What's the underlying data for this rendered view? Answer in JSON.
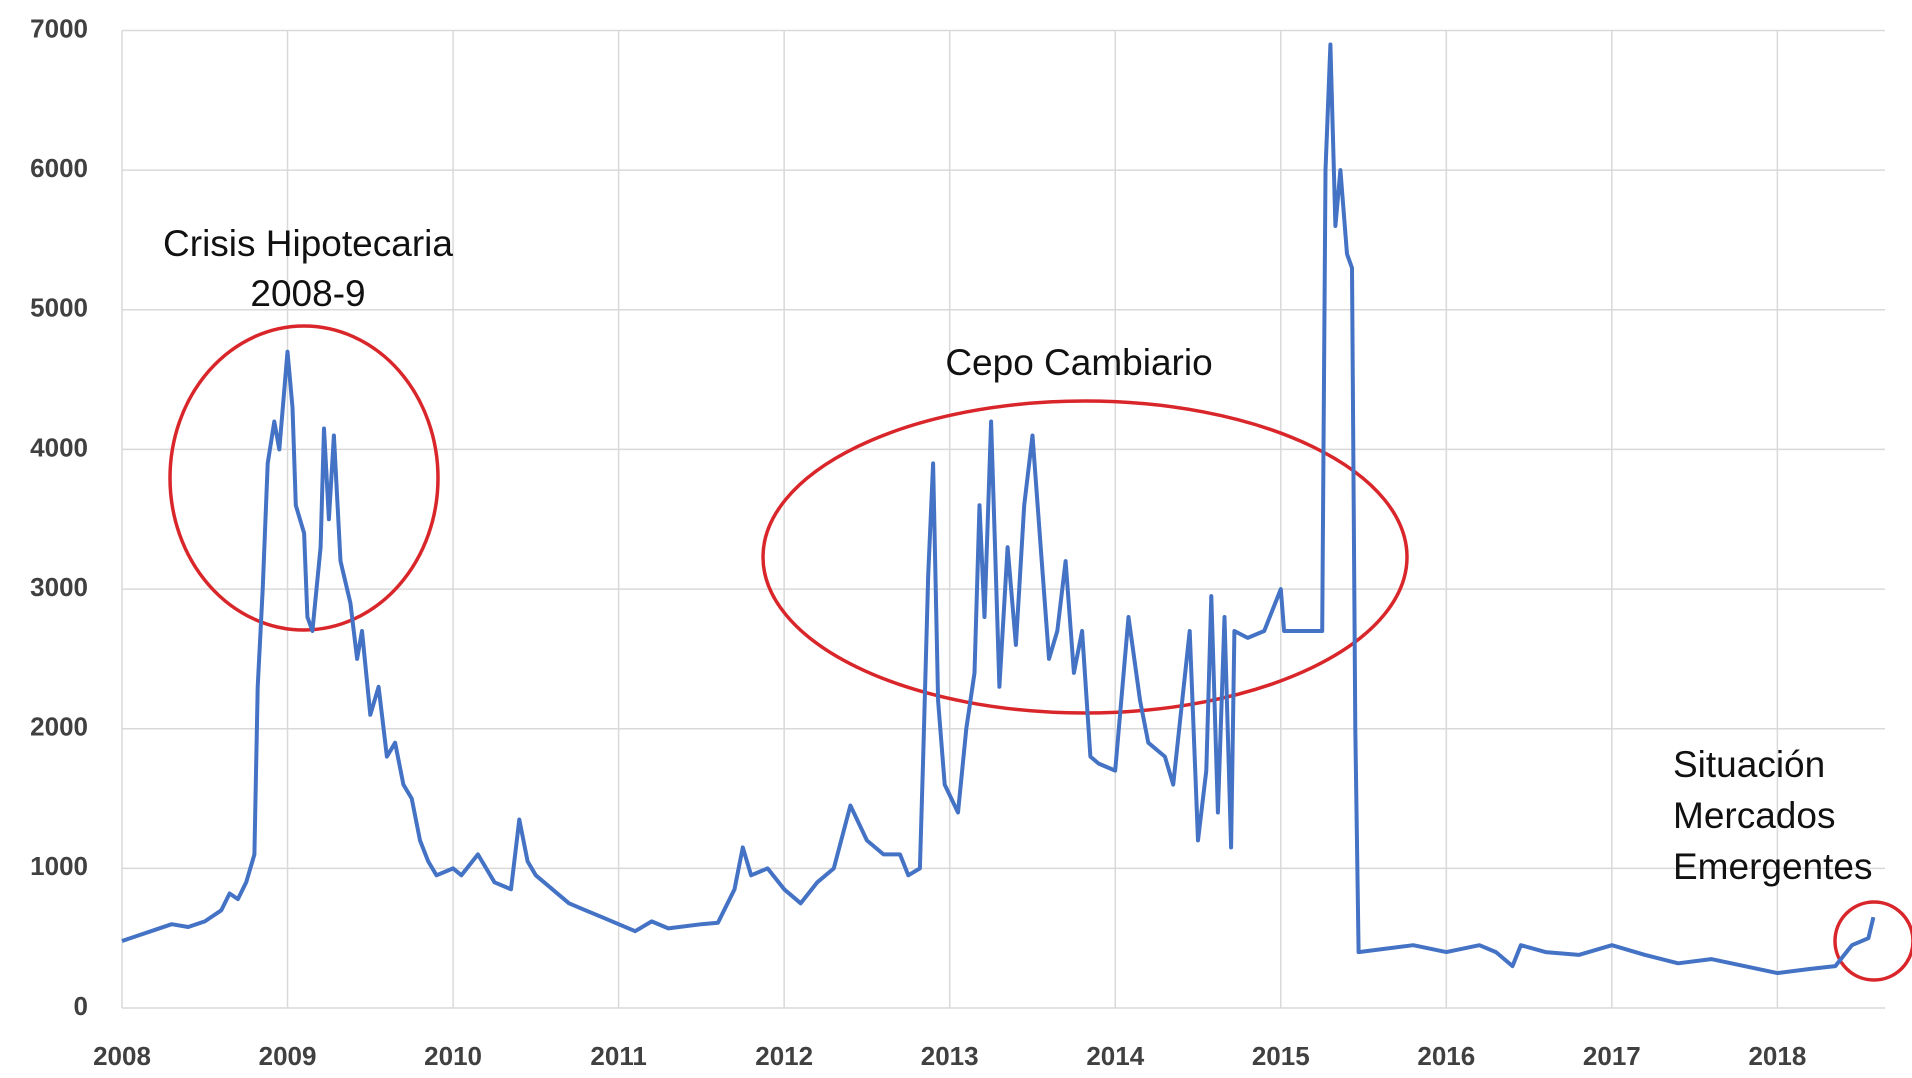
{
  "chart_data": {
    "type": "line",
    "xlim": [
      2008,
      2018.65
    ],
    "xticks": [
      2008,
      2009,
      2010,
      2011,
      2012,
      2013,
      2014,
      2015,
      2016,
      2017,
      2018
    ],
    "ylim": [
      0,
      7000
    ],
    "yticks": [
      0,
      1000,
      2000,
      3000,
      4000,
      5000,
      6000,
      7000
    ],
    "grid": true,
    "series": [
      {
        "color": "#4472c4",
        "x": [
          2008.0,
          2008.1,
          2008.2,
          2008.3,
          2008.4,
          2008.5,
          2008.6,
          2008.65,
          2008.7,
          2008.75,
          2008.8,
          2008.82,
          2008.85,
          2008.88,
          2008.92,
          2008.95,
          2009.0,
          2009.03,
          2009.05,
          2009.1,
          2009.12,
          2009.15,
          2009.2,
          2009.22,
          2009.25,
          2009.28,
          2009.32,
          2009.38,
          2009.42,
          2009.45,
          2009.5,
          2009.55,
          2009.6,
          2009.65,
          2009.7,
          2009.75,
          2009.8,
          2009.85,
          2009.9,
          2010.0,
          2010.05,
          2010.15,
          2010.25,
          2010.35,
          2010.4,
          2010.45,
          2010.5,
          2010.6,
          2010.7,
          2010.8,
          2010.9,
          2011.0,
          2011.1,
          2011.2,
          2011.3,
          2011.5,
          2011.6,
          2011.7,
          2011.75,
          2011.8,
          2011.9,
          2012.0,
          2012.1,
          2012.2,
          2012.3,
          2012.4,
          2012.5,
          2012.6,
          2012.7,
          2012.75,
          2012.82,
          2012.84,
          2012.87,
          2012.9,
          2012.93,
          2012.97,
          2013.05,
          2013.1,
          2013.15,
          2013.18,
          2013.21,
          2013.25,
          2013.3,
          2013.35,
          2013.4,
          2013.45,
          2013.5,
          2013.55,
          2013.6,
          2013.65,
          2013.7,
          2013.75,
          2013.8,
          2013.85,
          2013.9,
          2014.0,
          2014.08,
          2014.15,
          2014.2,
          2014.3,
          2014.35,
          2014.45,
          2014.5,
          2014.55,
          2014.58,
          2014.62,
          2014.66,
          2014.7,
          2014.72,
          2014.8,
          2014.9,
          2015.0,
          2015.02,
          2015.2,
          2015.25,
          2015.27,
          2015.3,
          2015.33,
          2015.36,
          2015.4,
          2015.43,
          2015.45,
          2015.47,
          2015.6,
          2015.8,
          2016.0,
          2016.2,
          2016.3,
          2016.4,
          2016.45,
          2016.6,
          2016.8,
          2017.0,
          2017.2,
          2017.4,
          2017.6,
          2017.8,
          2018.0,
          2018.2,
          2018.35,
          2018.45,
          2018.55,
          2018.58
        ],
        "values": [
          480,
          520,
          560,
          600,
          580,
          620,
          700,
          820,
          780,
          900,
          1100,
          2300,
          3000,
          3900,
          4200,
          4000,
          4700,
          4300,
          3600,
          3400,
          2800,
          2700,
          3300,
          4150,
          3500,
          4100,
          3200,
          2900,
          2500,
          2700,
          2100,
          2300,
          1800,
          1900,
          1600,
          1500,
          1200,
          1050,
          950,
          1000,
          950,
          1100,
          900,
          850,
          1350,
          1050,
          950,
          850,
          750,
          700,
          650,
          600,
          550,
          620,
          570,
          600,
          610,
          850,
          1150,
          950,
          1000,
          850,
          750,
          900,
          1000,
          1450,
          1200,
          1100,
          1100,
          950,
          1000,
          1800,
          3100,
          3900,
          2200,
          1600,
          1400,
          2000,
          2400,
          3600,
          2800,
          4200,
          2300,
          3300,
          2600,
          3600,
          4100,
          3300,
          2500,
          2700,
          3200,
          2400,
          2700,
          1800,
          1750,
          1700,
          2800,
          2200,
          1900,
          1800,
          1600,
          2700,
          1200,
          1700,
          2950,
          1400,
          2800,
          1150,
          2700,
          2650,
          2700,
          3000,
          2700,
          2700,
          2700,
          6000,
          6900,
          5600,
          6000,
          5400,
          5300,
          2000,
          400,
          420,
          450,
          400,
          450,
          400,
          300,
          450,
          400,
          380,
          450,
          380,
          320,
          350,
          300,
          250,
          280,
          300,
          450,
          500,
          650
        ]
      }
    ],
    "annotations": [
      {
        "lines": [
          "Crisis Hipotecaria",
          "2008-9"
        ]
      },
      {
        "lines": [
          "Cepo Cambiario"
        ]
      },
      {
        "lines": [
          "Situación",
          "Mercados",
          "Emergentes"
        ]
      }
    ]
  }
}
